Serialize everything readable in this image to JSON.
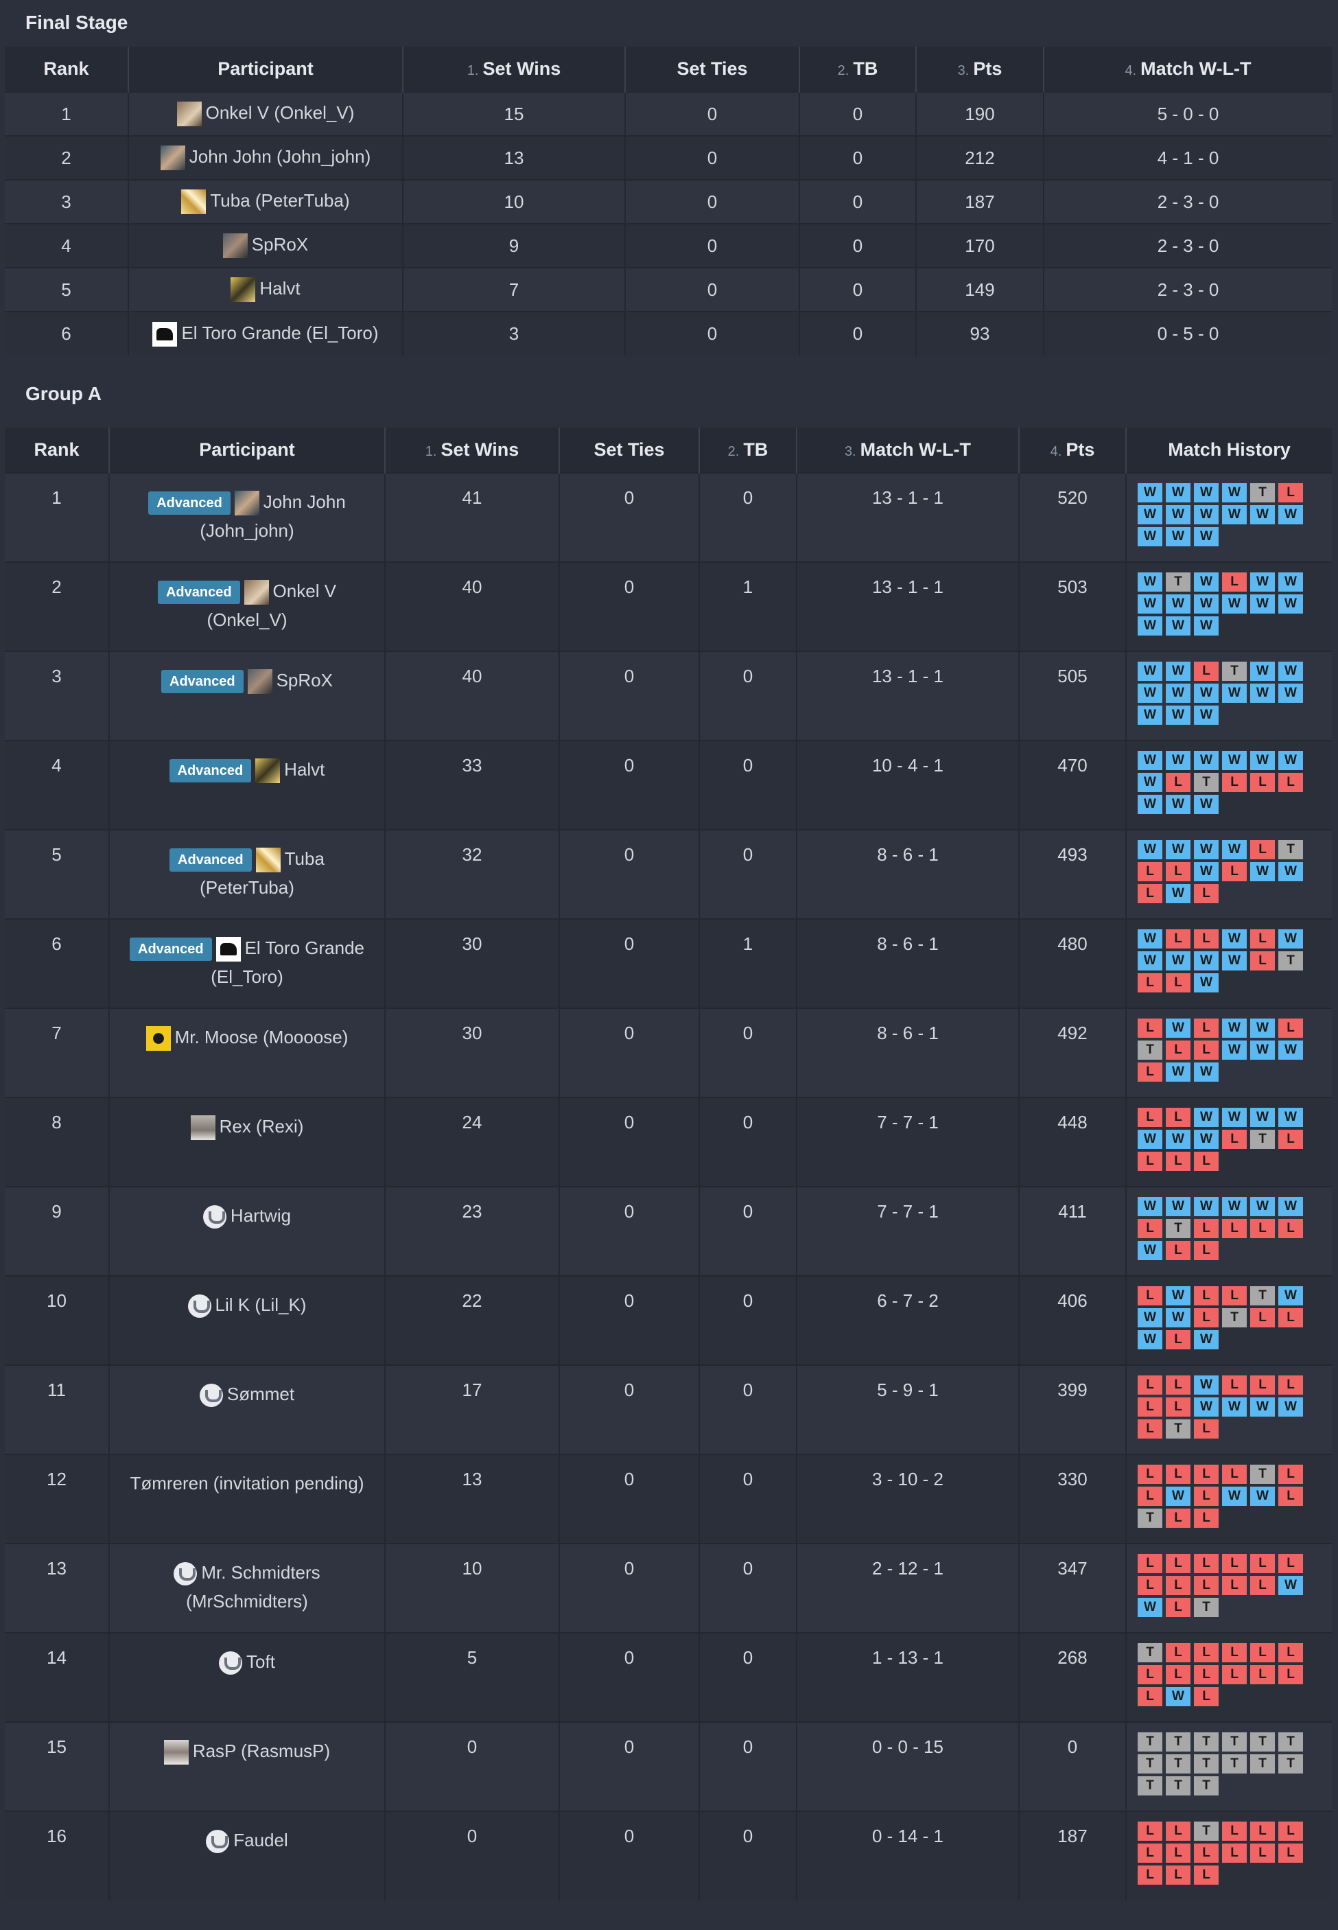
{
  "final_stage": {
    "title": "Final Stage",
    "columns": [
      {
        "num": "",
        "label": "Rank"
      },
      {
        "num": "",
        "label": "Participant"
      },
      {
        "num": "1.",
        "label": "Set Wins"
      },
      {
        "num": "",
        "label": "Set Ties"
      },
      {
        "num": "2.",
        "label": "TB"
      },
      {
        "num": "3.",
        "label": "Pts"
      },
      {
        "num": "4.",
        "label": "Match W-L-T"
      }
    ],
    "rows": [
      {
        "rank": "1",
        "avatar": "a1",
        "name": "Onkel V (Onkel_V)",
        "set_wins": "15",
        "set_ties": "0",
        "tb": "0",
        "pts": "190",
        "wlt": "5 - 0 - 0"
      },
      {
        "rank": "2",
        "avatar": "a2",
        "name": "John John (John_john)",
        "set_wins": "13",
        "set_ties": "0",
        "tb": "0",
        "pts": "212",
        "wlt": "4 - 1 - 0"
      },
      {
        "rank": "3",
        "avatar": "a3",
        "name": "Tuba (PeterTuba)",
        "set_wins": "10",
        "set_ties": "0",
        "tb": "0",
        "pts": "187",
        "wlt": "2 - 3 - 0"
      },
      {
        "rank": "4",
        "avatar": "a4",
        "name": "SpRoX",
        "set_wins": "9",
        "set_ties": "0",
        "tb": "0",
        "pts": "170",
        "wlt": "2 - 3 - 0"
      },
      {
        "rank": "5",
        "avatar": "a5",
        "name": "Halvt",
        "set_wins": "7",
        "set_ties": "0",
        "tb": "0",
        "pts": "149",
        "wlt": "2 - 3 - 0"
      },
      {
        "rank": "6",
        "avatar": "a6",
        "name": "El Toro Grande (El_Toro)",
        "set_wins": "3",
        "set_ties": "0",
        "tb": "0",
        "pts": "93",
        "wlt": "0 - 5 - 0"
      }
    ]
  },
  "group_a": {
    "title": "Group A",
    "badge_label": "Advanced",
    "columns": [
      {
        "num": "",
        "label": "Rank"
      },
      {
        "num": "",
        "label": "Participant"
      },
      {
        "num": "1.",
        "label": "Set Wins"
      },
      {
        "num": "",
        "label": "Set Ties"
      },
      {
        "num": "2.",
        "label": "TB"
      },
      {
        "num": "3.",
        "label": "Match W-L-T"
      },
      {
        "num": "4.",
        "label": "Pts"
      },
      {
        "num": "",
        "label": "Match History"
      }
    ],
    "rows": [
      {
        "rank": "1",
        "advanced": true,
        "avatar": "a2",
        "name": "John John (John_john)",
        "set_wins": "41",
        "set_ties": "0",
        "tb": "0",
        "wlt": "13 - 1 - 1",
        "pts": "520",
        "history": [
          "W",
          "W",
          "W",
          "W",
          "T",
          "L",
          "W",
          "W",
          "W",
          "W",
          "W",
          "W",
          "W",
          "W",
          "W"
        ]
      },
      {
        "rank": "2",
        "advanced": true,
        "avatar": "a1",
        "name": "Onkel V (Onkel_V)",
        "set_wins": "40",
        "set_ties": "0",
        "tb": "1",
        "wlt": "13 - 1 - 1",
        "pts": "503",
        "history": [
          "W",
          "T",
          "W",
          "L",
          "W",
          "W",
          "W",
          "W",
          "W",
          "W",
          "W",
          "W",
          "W",
          "W",
          "W"
        ]
      },
      {
        "rank": "3",
        "advanced": true,
        "avatar": "a4",
        "name": "SpRoX",
        "set_wins": "40",
        "set_ties": "0",
        "tb": "0",
        "wlt": "13 - 1 - 1",
        "pts": "505",
        "history": [
          "W",
          "W",
          "L",
          "T",
          "W",
          "W",
          "W",
          "W",
          "W",
          "W",
          "W",
          "W",
          "W",
          "W",
          "W"
        ]
      },
      {
        "rank": "4",
        "advanced": true,
        "avatar": "a5",
        "name": "Halvt",
        "set_wins": "33",
        "set_ties": "0",
        "tb": "0",
        "wlt": "10 - 4 - 1",
        "pts": "470",
        "history": [
          "W",
          "W",
          "W",
          "W",
          "W",
          "W",
          "W",
          "L",
          "T",
          "L",
          "L",
          "L",
          "W",
          "W",
          "W"
        ]
      },
      {
        "rank": "5",
        "advanced": true,
        "avatar": "a3",
        "name": "Tuba (PeterTuba)",
        "set_wins": "32",
        "set_ties": "0",
        "tb": "0",
        "wlt": "8 - 6 - 1",
        "pts": "493",
        "history": [
          "W",
          "W",
          "W",
          "W",
          "L",
          "T",
          "L",
          "L",
          "W",
          "L",
          "W",
          "W",
          "L",
          "W",
          "L"
        ]
      },
      {
        "rank": "6",
        "advanced": true,
        "avatar": "a6",
        "name": "El Toro Grande (El_Toro)",
        "set_wins": "30",
        "set_ties": "0",
        "tb": "1",
        "wlt": "8 - 6 - 1",
        "pts": "480",
        "history": [
          "W",
          "L",
          "L",
          "W",
          "L",
          "W",
          "W",
          "W",
          "W",
          "W",
          "L",
          "T",
          "L",
          "L",
          "W"
        ]
      },
      {
        "rank": "7",
        "advanced": false,
        "avatar": "a7",
        "name": "Mr. Moose (Moooose)",
        "set_wins": "30",
        "set_ties": "0",
        "tb": "0",
        "wlt": "8 - 6 - 1",
        "pts": "492",
        "history": [
          "L",
          "W",
          "L",
          "W",
          "W",
          "L",
          "T",
          "L",
          "L",
          "W",
          "W",
          "W",
          "L",
          "W",
          "W"
        ]
      },
      {
        "rank": "8",
        "advanced": false,
        "avatar": "a8",
        "name": "Rex (Rexi)",
        "set_wins": "24",
        "set_ties": "0",
        "tb": "0",
        "wlt": "7 - 7 - 1",
        "pts": "448",
        "history": [
          "L",
          "L",
          "W",
          "W",
          "W",
          "W",
          "W",
          "W",
          "W",
          "L",
          "T",
          "L",
          "L",
          "L",
          "L"
        ]
      },
      {
        "rank": "9",
        "advanced": false,
        "avatar": "logo",
        "name": "Hartwig",
        "set_wins": "23",
        "set_ties": "0",
        "tb": "0",
        "wlt": "7 - 7 - 1",
        "pts": "411",
        "history": [
          "W",
          "W",
          "W",
          "W",
          "W",
          "W",
          "L",
          "T",
          "L",
          "L",
          "L",
          "L",
          "W",
          "L",
          "L"
        ]
      },
      {
        "rank": "10",
        "advanced": false,
        "avatar": "logo",
        "name": "Lil K (Lil_K)",
        "set_wins": "22",
        "set_ties": "0",
        "tb": "0",
        "wlt": "6 - 7 - 2",
        "pts": "406",
        "history": [
          "L",
          "W",
          "L",
          "L",
          "T",
          "W",
          "W",
          "W",
          "L",
          "T",
          "L",
          "L",
          "W",
          "L",
          "W"
        ]
      },
      {
        "rank": "11",
        "advanced": false,
        "avatar": "logo",
        "name": "Sømmet",
        "set_wins": "17",
        "set_ties": "0",
        "tb": "0",
        "wlt": "5 - 9 - 1",
        "pts": "399",
        "history": [
          "L",
          "L",
          "W",
          "L",
          "L",
          "L",
          "L",
          "L",
          "W",
          "W",
          "W",
          "W",
          "L",
          "T",
          "L"
        ]
      },
      {
        "rank": "12",
        "advanced": false,
        "avatar": "",
        "name": "Tømreren (invitation pending)",
        "set_wins": "13",
        "set_ties": "0",
        "tb": "0",
        "wlt": "3 - 10 - 2",
        "pts": "330",
        "history": [
          "L",
          "L",
          "L",
          "L",
          "T",
          "L",
          "L",
          "W",
          "L",
          "W",
          "W",
          "L",
          "T",
          "L",
          "L"
        ]
      },
      {
        "rank": "13",
        "advanced": false,
        "avatar": "logo",
        "name": "Mr. Schmidters (MrSchmidters)",
        "set_wins": "10",
        "set_ties": "0",
        "tb": "0",
        "wlt": "2 - 12 - 1",
        "pts": "347",
        "history": [
          "L",
          "L",
          "L",
          "L",
          "L",
          "L",
          "L",
          "L",
          "L",
          "L",
          "L",
          "W",
          "W",
          "L",
          "T"
        ]
      },
      {
        "rank": "14",
        "advanced": false,
        "avatar": "logo",
        "name": "Toft",
        "set_wins": "5",
        "set_ties": "0",
        "tb": "0",
        "wlt": "1 - 13 - 1",
        "pts": "268",
        "history": [
          "T",
          "L",
          "L",
          "L",
          "L",
          "L",
          "L",
          "L",
          "L",
          "L",
          "L",
          "L",
          "L",
          "W",
          "L"
        ]
      },
      {
        "rank": "15",
        "advanced": false,
        "avatar": "a9",
        "name": "RasP (RasmusP)",
        "set_wins": "0",
        "set_ties": "0",
        "tb": "0",
        "wlt": "0 - 0 - 15",
        "pts": "0",
        "history": [
          "T",
          "T",
          "T",
          "T",
          "T",
          "T",
          "T",
          "T",
          "T",
          "T",
          "T",
          "T",
          "T",
          "T",
          "T"
        ]
      },
      {
        "rank": "16",
        "advanced": false,
        "avatar": "logo",
        "name": "Faudel",
        "set_wins": "0",
        "set_ties": "0",
        "tb": "0",
        "wlt": "0 - 14 - 1",
        "pts": "187",
        "history": [
          "L",
          "L",
          "T",
          "L",
          "L",
          "L",
          "L",
          "L",
          "L",
          "L",
          "L",
          "L",
          "L",
          "L",
          "L"
        ]
      }
    ]
  }
}
